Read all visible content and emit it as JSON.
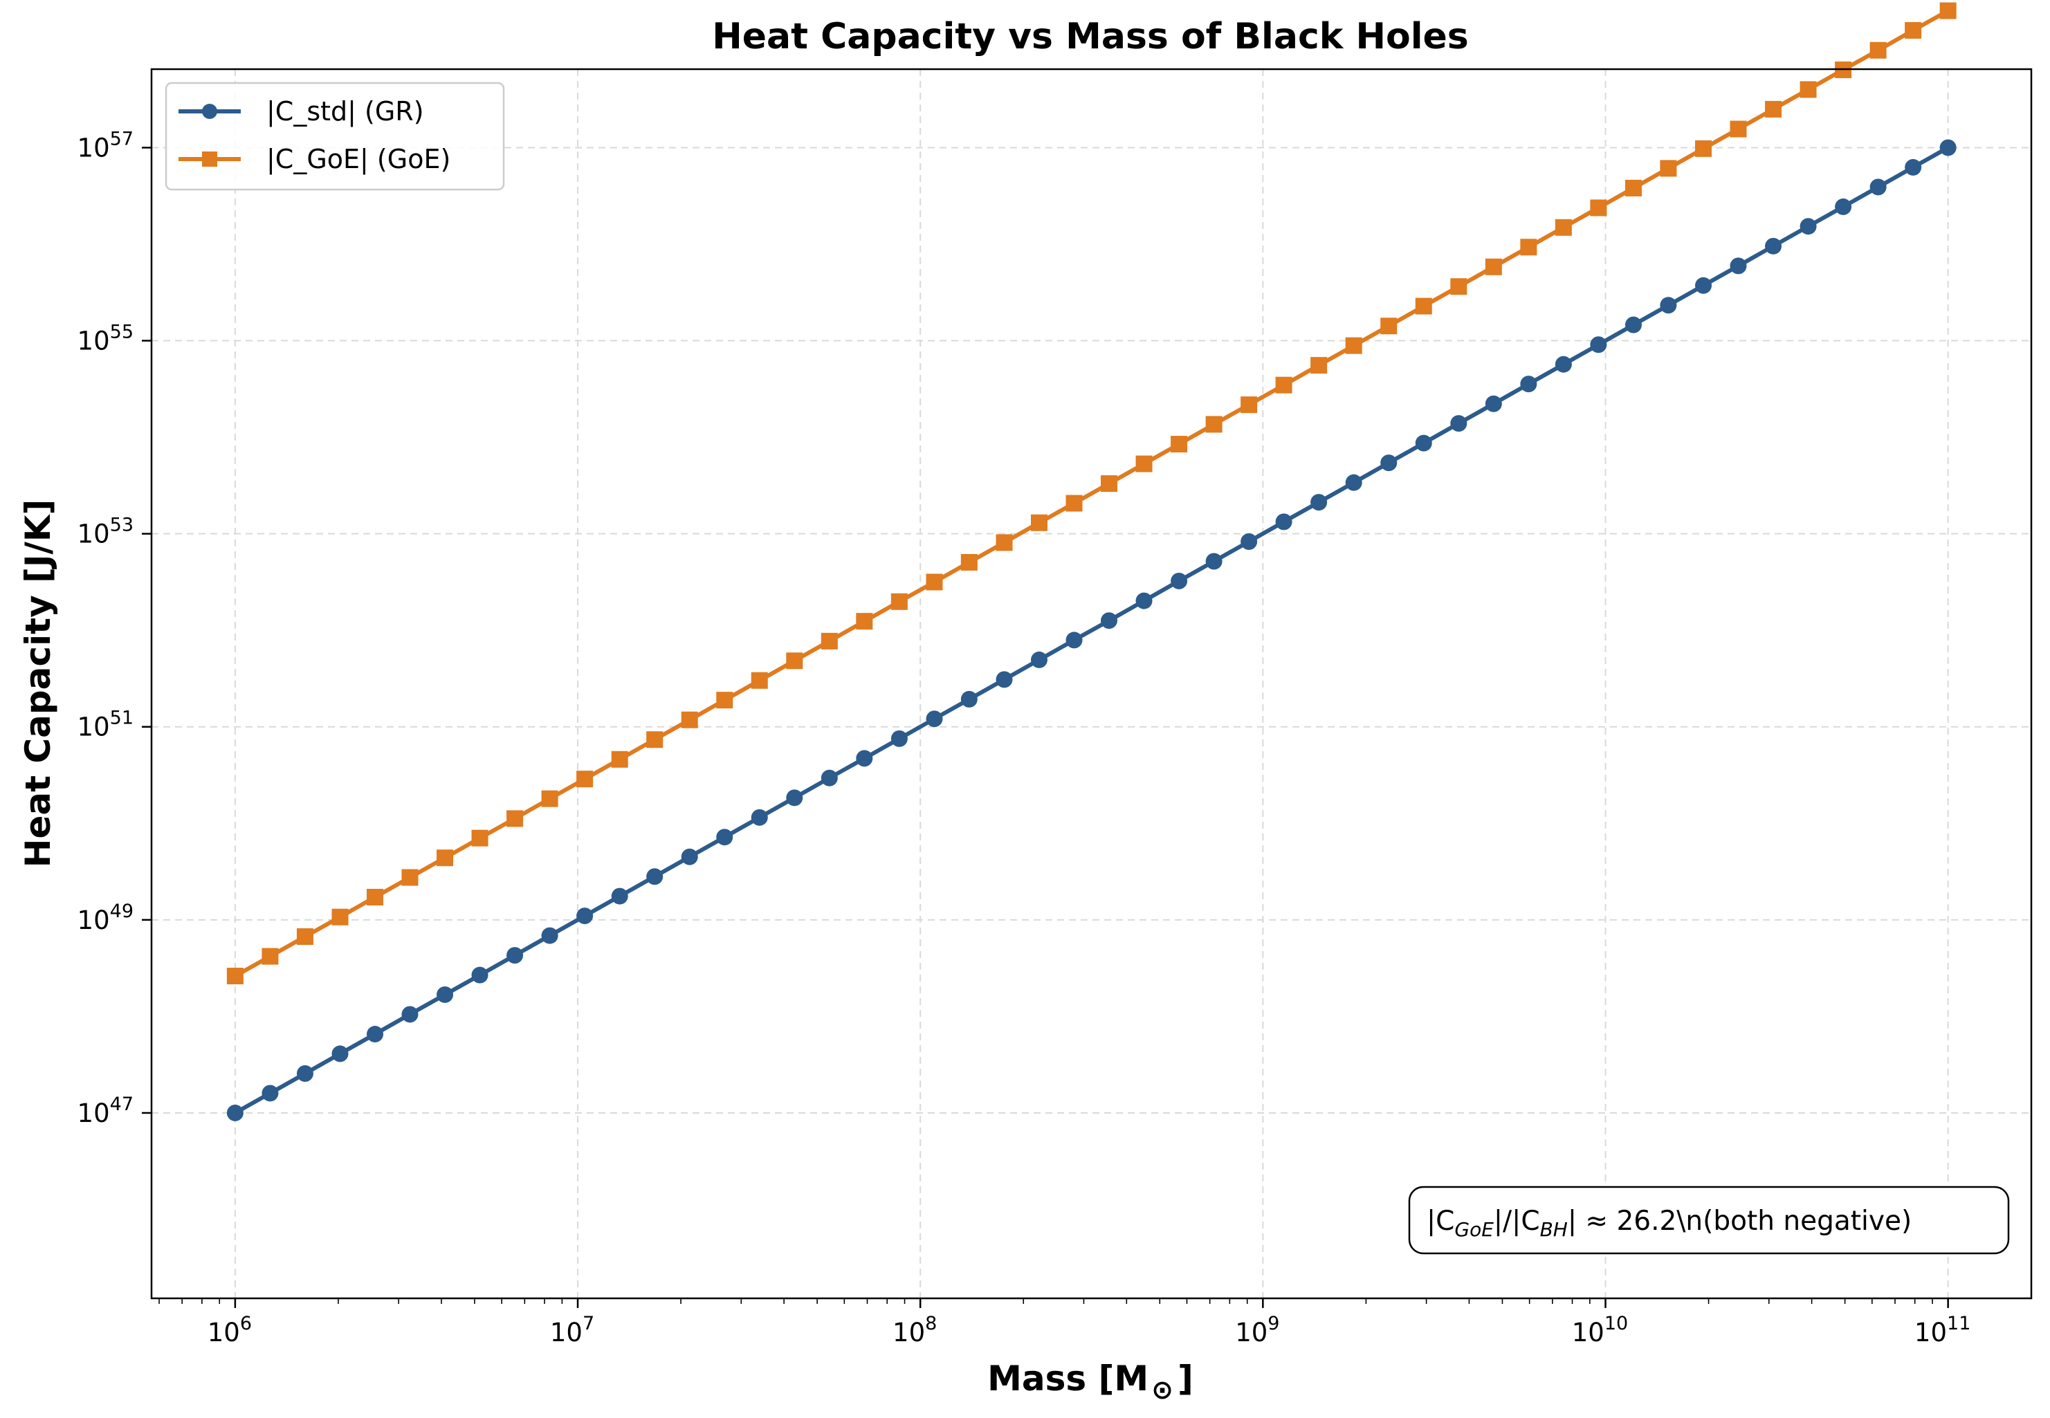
{
  "chart_data": {
    "type": "line",
    "title": "Heat Capacity vs Mass of Black Holes",
    "xlabel": "Mass [M",
    "xlabel_sub": "⊙",
    "xlabel_close": "]",
    "ylabel": "Heat Capacity [J/K]",
    "xscale": "log",
    "yscale": "log",
    "xlim": [
      570000.0,
      175000000000.0
    ],
    "ylim": [
      1.2e+45,
      6.5e+57
    ],
    "grid": true,
    "legend_position": "top-left",
    "x_ticks": [
      {
        "base": "10",
        "exp": "6",
        "value": 1000000.0
      },
      {
        "base": "10",
        "exp": "7",
        "value": 10000000.0
      },
      {
        "base": "10",
        "exp": "8",
        "value": 100000000.0
      },
      {
        "base": "10",
        "exp": "9",
        "value": 1000000000.0
      },
      {
        "base": "10",
        "exp": "10",
        "value": 10000000000.0
      },
      {
        "base": "10",
        "exp": "11",
        "value": 100000000000.0
      }
    ],
    "y_ticks": [
      {
        "base": "10",
        "exp": "47",
        "value": 1e+47
      },
      {
        "base": "10",
        "exp": "49",
        "value": 1e+49
      },
      {
        "base": "10",
        "exp": "51",
        "value": 1e+51
      },
      {
        "base": "10",
        "exp": "53",
        "value": 1e+53
      },
      {
        "base": "10",
        "exp": "55",
        "value": 1e+55
      },
      {
        "base": "10",
        "exp": "57",
        "value": 1e+57
      }
    ],
    "x_mass": [
      1000000.0,
      1265000.0,
      1600000.0,
      2024000.0,
      2560000.0,
      3237000.0,
      4095000.0,
      5179000.0,
      6551000.0,
      8286000.0,
      10480000.0,
      13260000.0,
      16770000.0,
      21210000.0,
      26830000.0,
      33930000.0,
      42920000.0,
      54290000.0,
      68660000.0,
      86850000.0,
      109900000.0,
      138900000.0,
      175800000.0,
      222300000.0,
      281200000.0,
      355600000.0,
      449800000.0,
      569000000.0,
      719700000.0,
      910300000.0,
      1151000000.0,
      1456000000.0,
      1842000000.0,
      2330000000.0,
      2947000000.0,
      3728000000.0,
      4715000000.0,
      5964000000.0,
      7543000000.0,
      9541000000.0,
      12070000000.0,
      15260000000.0,
      19310000000.0,
      24420000000.0,
      30890000000.0,
      39070000000.0,
      49420000000.0,
      62510000000.0,
      79060000000.0,
      100000000000.0
    ],
    "series": [
      {
        "name": "|C_std| (GR)",
        "color": "#2c5b8c",
        "marker": "circle",
        "a": 1e-12,
        "p": 2,
        "values": [
          1e-12,
          1.6e-12,
          2.56e-12,
          4.1e-12,
          6.55e-12,
          1.05e-11,
          1.68e-11,
          2.68e-11,
          4.29e-11,
          6.87e-11,
          1.1e-10,
          1.76e-10,
          2.81e-10,
          4.5e-10,
          7.2e-10,
          1.15e-09,
          1.84e-09,
          2.95e-09,
          4.71e-09,
          7.54e-09,
          1.21e-08,
          1.93e-08,
          3.09e-08,
          4.94e-08,
          7.91e-08,
          1.26e-07,
          2.02e-07,
          3.24e-07,
          5.18e-07,
          8.29e-07,
          1.33e-06,
          2.12e-06,
          3.39e-06,
          5.43e-06,
          8.69e-06,
          1.39e-05,
          2.22e-05,
          3.56e-05,
          5.69e-05,
          9.1e-05,
          0.000146,
          0.000233,
          0.000373,
          0.000596,
          0.000954,
          0.00153,
          0.00244,
          0.00391,
          0.00625,
          0.01
        ]
      },
      {
        "name": "|C_GoE| (GoE)",
        "color": "#e07b1f",
        "marker": "square",
        "a": 2.62e-11,
        "p": 2,
        "values": [
          2.62e-11,
          4.19e-11,
          6.71e-11,
          1.07e-10,
          1.72e-10,
          2.75e-10,
          4.39e-10,
          7.03e-10,
          1.12e-09,
          1.8e-09,
          2.88e-09,
          4.6e-09,
          7.37e-09,
          1.18e-08,
          1.89e-08,
          3.02e-08,
          4.83e-08,
          7.72e-08,
          1.24e-07,
          1.98e-07,
          3.16e-07,
          5.06e-07,
          8.1e-07,
          1.3e-06,
          2.07e-06,
          3.31e-06,
          5.3e-06,
          8.48e-06,
          1.36e-05,
          2.17e-05,
          3.47e-05,
          5.56e-05,
          8.89e-05,
          0.000142,
          0.000228,
          0.000364,
          0.000582,
          0.000932,
          0.00149,
          0.00238,
          0.00381,
          0.0061,
          0.00977,
          0.0156,
          0.025,
          0.04,
          0.064,
          0.102,
          0.164,
          0.262
        ]
      }
    ],
    "value_scale": 1e+59,
    "annotation": {
      "prefix": "|C",
      "sub1": "GoE",
      "mid": "|/|C",
      "sub2": "BH",
      "suffix": "| ≈ 26.2\\n(both negative)",
      "position": "bottom-right"
    }
  },
  "colors": {
    "axis": "#000000",
    "grid": "#d9d9d9",
    "series_gr": "#2c5b8c",
    "series_goe": "#e07b1f"
  }
}
